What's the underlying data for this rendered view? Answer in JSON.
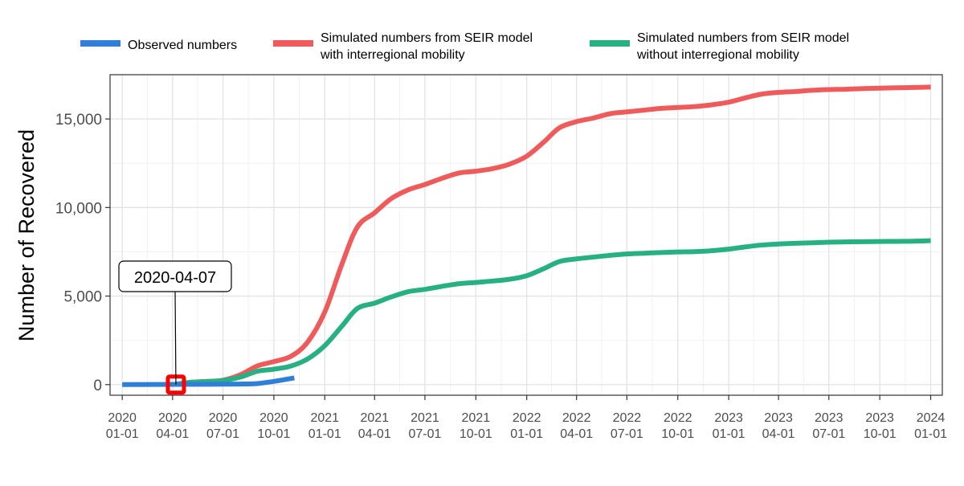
{
  "chart_data": {
    "type": "line",
    "ylabel": "Number of Recovered",
    "xlabel": "",
    "ylim": [
      -600,
      17500
    ],
    "xlim": [
      "2019-12-10",
      "2024-01-22"
    ],
    "grid": true,
    "legend_position": "top",
    "y_ticks": [
      0,
      5000,
      10000,
      15000
    ],
    "y_tick_labels": [
      "0",
      "5,000",
      "10,000",
      "15,000"
    ],
    "x_ticks": [
      "2020-01-01",
      "2020-04-01",
      "2020-07-01",
      "2020-10-01",
      "2021-01-01",
      "2021-04-01",
      "2021-07-01",
      "2021-10-01",
      "2022-01-01",
      "2022-04-01",
      "2022-07-01",
      "2022-10-01",
      "2023-01-01",
      "2023-04-01",
      "2023-07-01",
      "2023-10-01",
      "2024-01-01"
    ],
    "x_tick_labels": [
      [
        "2020",
        "01-01"
      ],
      [
        "2020",
        "04-01"
      ],
      [
        "2020",
        "07-01"
      ],
      [
        "2020",
        "10-01"
      ],
      [
        "2021",
        "01-01"
      ],
      [
        "2021",
        "04-01"
      ],
      [
        "2021",
        "07-01"
      ],
      [
        "2021",
        "10-01"
      ],
      [
        "2022",
        "01-01"
      ],
      [
        "2022",
        "04-01"
      ],
      [
        "2022",
        "07-01"
      ],
      [
        "2022",
        "10-01"
      ],
      [
        "2023",
        "01-01"
      ],
      [
        "2023",
        "04-01"
      ],
      [
        "2023",
        "07-01"
      ],
      [
        "2023",
        "10-01"
      ],
      [
        "2024",
        "01-01"
      ]
    ],
    "series": [
      {
        "name": "Observed numbers",
        "color": "#2f7ed8",
        "points": [
          [
            "2020-01-01",
            0
          ],
          [
            "2020-04-07",
            10
          ],
          [
            "2020-06-01",
            20
          ],
          [
            "2020-08-01",
            30
          ],
          [
            "2020-09-01",
            60
          ],
          [
            "2020-10-01",
            180
          ],
          [
            "2020-10-20",
            280
          ],
          [
            "2020-11-07",
            380
          ]
        ]
      },
      {
        "name": "Simulated numbers from SEIR model\nwith interregional mobility",
        "color": "#ef5b5b",
        "points": [
          [
            "2020-04-07",
            20
          ],
          [
            "2020-05-01",
            120
          ],
          [
            "2020-06-01",
            180
          ],
          [
            "2020-07-01",
            250
          ],
          [
            "2020-08-01",
            550
          ],
          [
            "2020-09-01",
            1050
          ],
          [
            "2020-10-01",
            1300
          ],
          [
            "2020-11-01",
            1600
          ],
          [
            "2020-12-01",
            2400
          ],
          [
            "2021-01-01",
            4100
          ],
          [
            "2021-02-01",
            6800
          ],
          [
            "2021-03-01",
            8900
          ],
          [
            "2021-04-01",
            9700
          ],
          [
            "2021-05-01",
            10500
          ],
          [
            "2021-06-01",
            11000
          ],
          [
            "2021-07-01",
            11300
          ],
          [
            "2021-08-01",
            11650
          ],
          [
            "2021-09-01",
            11950
          ],
          [
            "2021-10-01",
            12050
          ],
          [
            "2021-11-01",
            12200
          ],
          [
            "2021-12-01",
            12450
          ],
          [
            "2022-01-01",
            12900
          ],
          [
            "2022-02-01",
            13700
          ],
          [
            "2022-03-01",
            14500
          ],
          [
            "2022-04-01",
            14850
          ],
          [
            "2022-05-01",
            15050
          ],
          [
            "2022-06-01",
            15300
          ],
          [
            "2022-07-01",
            15400
          ],
          [
            "2022-08-01",
            15500
          ],
          [
            "2022-09-01",
            15600
          ],
          [
            "2022-10-01",
            15650
          ],
          [
            "2022-11-01",
            15700
          ],
          [
            "2022-12-01",
            15800
          ],
          [
            "2023-01-01",
            15950
          ],
          [
            "2023-02-01",
            16200
          ],
          [
            "2023-03-01",
            16400
          ],
          [
            "2023-04-01",
            16500
          ],
          [
            "2023-05-01",
            16550
          ],
          [
            "2023-06-01",
            16620
          ],
          [
            "2023-07-01",
            16660
          ],
          [
            "2023-08-01",
            16680
          ],
          [
            "2023-09-01",
            16720
          ],
          [
            "2023-10-01",
            16740
          ],
          [
            "2023-11-01",
            16760
          ],
          [
            "2023-12-01",
            16780
          ],
          [
            "2024-01-01",
            16800
          ]
        ]
      },
      {
        "name": "Simulated numbers from SEIR model\nwithout interregional mobility",
        "color": "#27b082",
        "points": [
          [
            "2020-04-07",
            20
          ],
          [
            "2020-05-01",
            120
          ],
          [
            "2020-06-01",
            170
          ],
          [
            "2020-07-01",
            230
          ],
          [
            "2020-08-01",
            420
          ],
          [
            "2020-09-01",
            750
          ],
          [
            "2020-10-01",
            870
          ],
          [
            "2020-11-01",
            1050
          ],
          [
            "2020-12-01",
            1450
          ],
          [
            "2021-01-01",
            2200
          ],
          [
            "2021-02-01",
            3300
          ],
          [
            "2021-03-01",
            4300
          ],
          [
            "2021-04-01",
            4600
          ],
          [
            "2021-05-01",
            4950
          ],
          [
            "2021-06-01",
            5250
          ],
          [
            "2021-07-01",
            5380
          ],
          [
            "2021-08-01",
            5550
          ],
          [
            "2021-09-01",
            5700
          ],
          [
            "2021-10-01",
            5770
          ],
          [
            "2021-11-01",
            5850
          ],
          [
            "2021-12-01",
            5950
          ],
          [
            "2022-01-01",
            6150
          ],
          [
            "2022-02-01",
            6550
          ],
          [
            "2022-03-01",
            6950
          ],
          [
            "2022-04-01",
            7100
          ],
          [
            "2022-05-01",
            7200
          ],
          [
            "2022-06-01",
            7300
          ],
          [
            "2022-07-01",
            7380
          ],
          [
            "2022-08-01",
            7420
          ],
          [
            "2022-09-01",
            7460
          ],
          [
            "2022-10-01",
            7490
          ],
          [
            "2022-11-01",
            7510
          ],
          [
            "2022-12-01",
            7560
          ],
          [
            "2023-01-01",
            7650
          ],
          [
            "2023-02-01",
            7780
          ],
          [
            "2023-03-01",
            7880
          ],
          [
            "2023-04-01",
            7940
          ],
          [
            "2023-05-01",
            7980
          ],
          [
            "2023-06-01",
            8010
          ],
          [
            "2023-07-01",
            8040
          ],
          [
            "2023-08-01",
            8060
          ],
          [
            "2023-09-01",
            8070
          ],
          [
            "2023-10-01",
            8080
          ],
          [
            "2023-11-01",
            8090
          ],
          [
            "2023-12-01",
            8100
          ],
          [
            "2024-01-01",
            8130
          ]
        ]
      }
    ],
    "annotation": {
      "text": "2020-04-07",
      "date": "2020-04-07",
      "value": 0,
      "marker_color": "#ff0000"
    }
  }
}
